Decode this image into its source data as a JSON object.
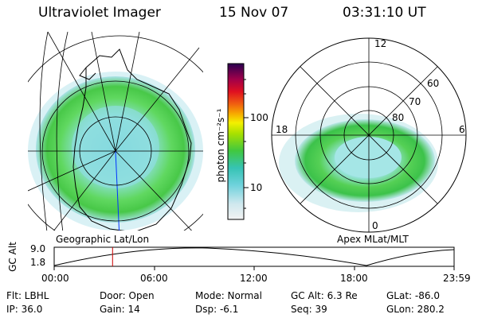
{
  "header": {
    "instrument": "Ultraviolet Imager",
    "date": "15 Nov 07",
    "time": "03:31:10 UT"
  },
  "colorbar": {
    "unit_label": "photon cm⁻²s⁻¹",
    "tick_high": "100",
    "tick_low": "10"
  },
  "left_panel": {
    "caption": "Geographic Lat/Lon"
  },
  "right_panel": {
    "caption": "Apex  MLat/MLT",
    "mlt_labels": {
      "top": "12",
      "bottom": "0",
      "left": "18",
      "right": "6"
    },
    "lat_labels": {
      "l60": "60",
      "l70": "70",
      "l80": "80"
    }
  },
  "timeline": {
    "y_axis_label": "GC Alt",
    "y_max": "9.0",
    "y_min": "1.8",
    "x_ticks": [
      "00:00",
      "06:00",
      "12:00",
      "18:00",
      "23:59"
    ],
    "marker_time_fraction": 0.146
  },
  "info": {
    "filter": "Flt: LBHL",
    "ip": "IP: 36.0",
    "door": "Door: Open",
    "gain": "Gain: 14",
    "mode": "Mode: Normal",
    "dsp": "Dsp:   -6.1",
    "gc_alt": "GC Alt: 6.3 Re",
    "seq": "Seq: 39",
    "glat": "GLat: -86.0",
    "glon": "GLon: 280.2"
  }
}
